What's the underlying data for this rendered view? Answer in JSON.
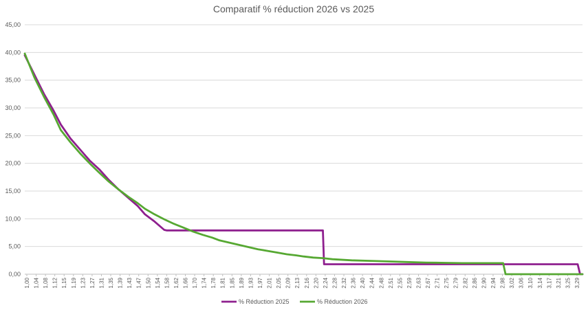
{
  "chart_data": {
    "type": "line",
    "title": "Comparatif % réduction 2026 vs 2025",
    "xlabel": "",
    "ylabel": "",
    "xlim": [
      1.0,
      3.32
    ],
    "ylim": [
      0,
      45
    ],
    "y_ticks": [
      "0,00",
      "5,00",
      "10,00",
      "15,00",
      "20,00",
      "25,00",
      "30,00",
      "35,00",
      "40,00",
      "45,00"
    ],
    "x_ticks": [
      "1,00",
      "1,04",
      "1,08",
      "1,12",
      "1,15",
      "1,19",
      "1,23",
      "1,27",
      "1,31",
      "1,35",
      "1,39",
      "1,43",
      "1,47",
      "1,50",
      "1,54",
      "1,58",
      "1,62",
      "1,66",
      "1,70",
      "1,74",
      "1,78",
      "1,81",
      "1,85",
      "1,89",
      "1,93",
      "1,97",
      "2,01",
      "2,05",
      "2,09",
      "2,13",
      "2,16",
      "2,20",
      "2,24",
      "2,28",
      "2,32",
      "2,36",
      "2,40",
      "2,44",
      "2,48",
      "2,51",
      "2,55",
      "2,59",
      "2,63",
      "2,67",
      "2,71",
      "2,75",
      "2,79",
      "2,82",
      "2,86",
      "2,90",
      "2,94",
      "2,98",
      "3,02",
      "3,06",
      "3,10",
      "3,14",
      "3,17",
      "3,21",
      "3,25",
      "3,29"
    ],
    "grid": true,
    "legend_position": "bottom",
    "series": [
      {
        "name": "% Réduction 2025",
        "color": "#8e1f8e",
        "points": [
          [
            1.0,
            39.5
          ],
          [
            1.04,
            36.0
          ],
          [
            1.08,
            32.5
          ],
          [
            1.12,
            29.5
          ],
          [
            1.15,
            27.0
          ],
          [
            1.19,
            24.5
          ],
          [
            1.23,
            22.5
          ],
          [
            1.27,
            20.5
          ],
          [
            1.31,
            18.9
          ],
          [
            1.35,
            17.0
          ],
          [
            1.39,
            15.3
          ],
          [
            1.43,
            13.8
          ],
          [
            1.47,
            12.3
          ],
          [
            1.5,
            10.8
          ],
          [
            1.54,
            9.5
          ],
          [
            1.58,
            8.0
          ],
          [
            1.59,
            7.9
          ],
          [
            2.24,
            7.9
          ],
          [
            2.245,
            1.8
          ],
          [
            3.3,
            1.8
          ],
          [
            3.31,
            0.0
          ],
          [
            3.32,
            0.0
          ]
        ]
      },
      {
        "name": "% Réduction 2026",
        "color": "#56a832",
        "points": [
          [
            1.0,
            39.8
          ],
          [
            1.04,
            35.5
          ],
          [
            1.08,
            32.0
          ],
          [
            1.12,
            28.8
          ],
          [
            1.15,
            26.0
          ],
          [
            1.19,
            23.8
          ],
          [
            1.23,
            21.8
          ],
          [
            1.27,
            20.0
          ],
          [
            1.31,
            18.3
          ],
          [
            1.35,
            16.7
          ],
          [
            1.39,
            15.3
          ],
          [
            1.43,
            14.0
          ],
          [
            1.47,
            12.8
          ],
          [
            1.5,
            11.8
          ],
          [
            1.54,
            10.8
          ],
          [
            1.58,
            9.9
          ],
          [
            1.62,
            9.1
          ],
          [
            1.66,
            8.4
          ],
          [
            1.7,
            7.7
          ],
          [
            1.74,
            7.1
          ],
          [
            1.78,
            6.6
          ],
          [
            1.81,
            6.1
          ],
          [
            1.85,
            5.7
          ],
          [
            1.89,
            5.3
          ],
          [
            1.93,
            4.9
          ],
          [
            1.97,
            4.5
          ],
          [
            2.01,
            4.2
          ],
          [
            2.05,
            3.9
          ],
          [
            2.09,
            3.6
          ],
          [
            2.13,
            3.4
          ],
          [
            2.16,
            3.2
          ],
          [
            2.2,
            3.0
          ],
          [
            2.24,
            2.9
          ],
          [
            2.28,
            2.7
          ],
          [
            2.36,
            2.5
          ],
          [
            2.44,
            2.4
          ],
          [
            2.51,
            2.3
          ],
          [
            2.59,
            2.2
          ],
          [
            2.67,
            2.1
          ],
          [
            2.75,
            2.05
          ],
          [
            2.82,
            2.0
          ],
          [
            2.9,
            2.0
          ],
          [
            2.98,
            2.0
          ],
          [
            2.99,
            2.0
          ],
          [
            3.0,
            0.0
          ],
          [
            3.32,
            0.0
          ]
        ]
      }
    ]
  }
}
